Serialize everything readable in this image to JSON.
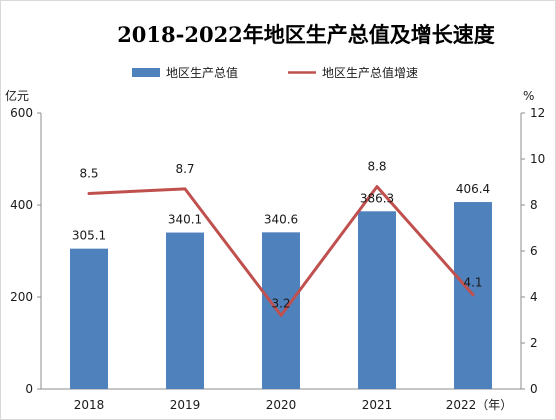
{
  "chart_data": {
    "type": "bar",
    "title": "2018-2022年地区生产总值及增长速度",
    "categories": [
      "2018",
      "2019",
      "2020",
      "2021",
      "2022"
    ],
    "x_unit": "（年）",
    "y_left": {
      "unit": "亿元",
      "range": [
        0,
        600
      ],
      "ticks": [
        "0",
        "200",
        "400",
        "600"
      ]
    },
    "y_right": {
      "unit": "%",
      "range": [
        0,
        12
      ],
      "ticks": [
        "0",
        "2",
        "4",
        "6",
        "8",
        "10",
        "12"
      ]
    },
    "series": [
      {
        "name": "地区生产总值",
        "type": "bar",
        "axis": "left",
        "color": "#4f81bd",
        "values": [
          305.1,
          340.1,
          340.6,
          386.3,
          406.4
        ],
        "labels": [
          "305.1",
          "340.1",
          "340.6",
          "386.3",
          "406.4"
        ]
      },
      {
        "name": "地区生产总值增速",
        "type": "line",
        "axis": "right",
        "color": "#c0504d",
        "values": [
          8.5,
          8.7,
          3.2,
          8.8,
          4.1
        ],
        "labels": [
          "8.5",
          "8.7",
          "3.2",
          "8.8",
          "4.1"
        ]
      }
    ],
    "grid": false,
    "legend_position": "top"
  }
}
